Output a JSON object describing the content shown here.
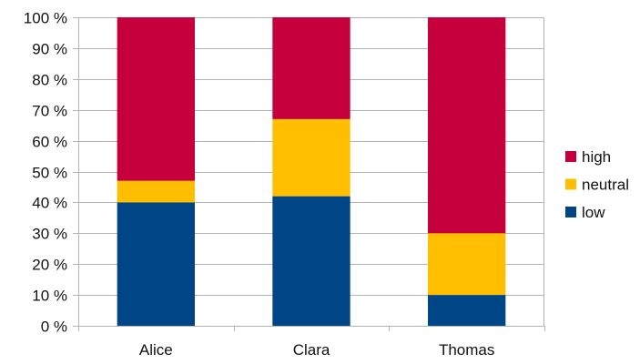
{
  "chart_data": {
    "type": "bar",
    "stacked": true,
    "percent_stacked": true,
    "categories": [
      "Alice",
      "Clara",
      "Thomas"
    ],
    "series": [
      {
        "name": "low",
        "values": [
          40,
          42,
          10
        ],
        "color": "#004586"
      },
      {
        "name": "neutral",
        "values": [
          7,
          25,
          20
        ],
        "color": "#ffbf00"
      },
      {
        "name": "high",
        "values": [
          53,
          33,
          70
        ],
        "color": "#c5003d"
      }
    ],
    "ylim": [
      0,
      100
    ],
    "yticks": [
      "0 %",
      "10 %",
      "20 %",
      "30 %",
      "40 %",
      "50 %",
      "60 %",
      "70 %",
      "80 %",
      "90 %",
      "100 %"
    ],
    "grid": true,
    "legend_position": "right",
    "legend_order": [
      "high",
      "neutral",
      "low"
    ],
    "title": "",
    "xlabel": "",
    "ylabel": ""
  }
}
